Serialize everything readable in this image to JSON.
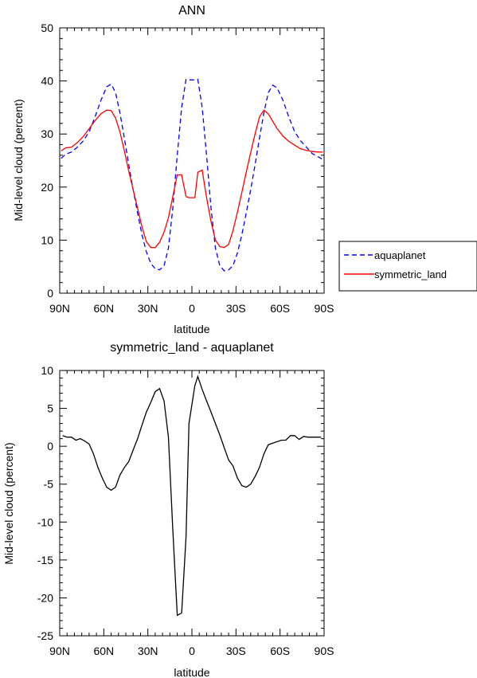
{
  "chart_data": [
    {
      "type": "line",
      "title": "ANN",
      "xlabel": "latitude",
      "ylabel": "Mid-level cloud (percent)",
      "xlim": [
        -90,
        90
      ],
      "ylim": [
        0,
        50
      ],
      "x_ticks": [
        -90,
        -60,
        -30,
        0,
        30,
        60,
        90
      ],
      "x_tick_labels": [
        "90N",
        "60N",
        "30N",
        "0",
        "30S",
        "60S",
        "90S"
      ],
      "y_ticks": [
        0,
        10,
        20,
        30,
        40,
        50
      ],
      "y_tick_labels": [
        "0",
        "10",
        "20",
        "30",
        "40",
        "50"
      ],
      "legend": "outside-right",
      "series": [
        {
          "name": "aquaplanet",
          "color": "#0000ff",
          "dash": "dashed",
          "x": [
            -89,
            -86,
            -82,
            -78,
            -74,
            -70,
            -66,
            -62,
            -58,
            -55,
            -52,
            -49,
            -46,
            -43,
            -40,
            -37,
            -34,
            -31,
            -28,
            -25,
            -22,
            -19,
            -16,
            -13,
            -10,
            -7,
            -4,
            -1,
            1,
            4,
            7,
            10,
            13,
            16,
            19,
            22,
            25,
            28,
            31,
            34,
            37,
            40,
            43,
            46,
            49,
            52,
            55,
            58,
            62,
            66,
            70,
            74,
            78,
            82,
            86,
            89
          ],
          "y": [
            25.4,
            26.2,
            26.6,
            27.5,
            28.7,
            30.4,
            33.2,
            36.3,
            38.9,
            39.4,
            37.8,
            34.0,
            29.2,
            24.2,
            19.5,
            15.1,
            11.0,
            7.8,
            5.6,
            4.6,
            4.4,
            5.2,
            8.5,
            16.0,
            26.0,
            35.0,
            40.3,
            40.2,
            40.2,
            40.3,
            35.0,
            26.0,
            16.0,
            8.5,
            5.2,
            4.2,
            4.4,
            5.2,
            7.6,
            11.0,
            15.1,
            19.5,
            24.2,
            29.2,
            34.0,
            37.8,
            39.2,
            38.7,
            36.3,
            33.2,
            30.4,
            28.7,
            27.5,
            26.3,
            25.7,
            25.2
          ]
        },
        {
          "name": "symmetric_land",
          "color": "#ff0000",
          "dash": "solid",
          "x": [
            -89,
            -86,
            -82,
            -78,
            -74,
            -70,
            -66,
            -62,
            -58,
            -55,
            -52,
            -49,
            -46,
            -43,
            -40,
            -37,
            -34,
            -31,
            -28,
            -25,
            -22,
            -19,
            -16,
            -13,
            -10,
            -7,
            -4,
            -2,
            2,
            4,
            7,
            10,
            13,
            16,
            19,
            22,
            25,
            28,
            31,
            34,
            37,
            40,
            43,
            46,
            49,
            52,
            55,
            58,
            62,
            66,
            70,
            74,
            78,
            82,
            86,
            89
          ],
          "y": [
            26.8,
            27.4,
            27.5,
            28.4,
            29.5,
            31.0,
            32.5,
            33.8,
            34.5,
            34.4,
            33.0,
            30.4,
            26.8,
            23.0,
            19.5,
            16.0,
            12.5,
            9.7,
            8.6,
            8.6,
            9.6,
            11.5,
            14.2,
            18.2,
            22.3,
            22.3,
            18.2,
            18.0,
            18.0,
            22.8,
            23.2,
            18.0,
            13.5,
            10.0,
            8.8,
            8.6,
            9.2,
            11.8,
            15.3,
            19.0,
            22.8,
            26.5,
            30.0,
            33.2,
            34.5,
            33.8,
            32.4,
            31.0,
            29.6,
            28.6,
            27.9,
            27.2,
            26.9,
            26.7,
            26.6,
            26.6
          ]
        }
      ]
    },
    {
      "type": "line",
      "title": "symmetric_land - aquaplanet",
      "xlabel": "latitude",
      "ylabel": "Mid-level cloud (percent)",
      "xlim": [
        -90,
        90
      ],
      "ylim": [
        -25,
        10
      ],
      "x_ticks": [
        -90,
        -60,
        -30,
        0,
        30,
        60,
        90
      ],
      "x_tick_labels": [
        "90N",
        "60N",
        "30N",
        "0",
        "30S",
        "60S",
        "90S"
      ],
      "y_ticks": [
        -25,
        -20,
        -15,
        -10,
        -5,
        0,
        5,
        10
      ],
      "y_tick_labels": [
        "-25",
        "-20",
        "-15",
        "-10",
        "-5",
        "0",
        "5",
        "10"
      ],
      "series": [
        {
          "color": "#000000",
          "dash": "solid",
          "x": [
            -88,
            -85,
            -82,
            -79,
            -76,
            -73,
            -70,
            -67,
            -64,
            -61,
            -58,
            -55,
            -52,
            -49,
            -46,
            -43,
            -40,
            -37,
            -34,
            -31,
            -28,
            -25,
            -22,
            -19,
            -16,
            -13,
            -10,
            -7,
            -4,
            -2,
            2,
            4,
            7,
            10,
            13,
            16,
            19,
            22,
            25,
            28,
            31,
            34,
            37,
            40,
            43,
            46,
            49,
            52,
            55,
            58,
            61,
            64,
            67,
            70,
            73,
            76,
            79,
            82,
            85,
            88
          ],
          "y": [
            1.4,
            1.2,
            1.2,
            0.8,
            1.0,
            0.7,
            0.3,
            -1.0,
            -2.8,
            -4.2,
            -5.4,
            -5.8,
            -5.4,
            -3.8,
            -2.8,
            -2.0,
            -0.5,
            1.0,
            2.8,
            4.5,
            5.8,
            7.2,
            7.6,
            6.0,
            1.2,
            -11.0,
            -22.3,
            -22.0,
            -12.0,
            3.0,
            8.0,
            9.2,
            7.5,
            6.0,
            4.5,
            3.0,
            1.5,
            -0.2,
            -1.8,
            -2.6,
            -4.2,
            -5.2,
            -5.4,
            -5.0,
            -4.0,
            -2.8,
            -1.0,
            0.2,
            0.4,
            0.6,
            0.8,
            0.8,
            1.4,
            1.4,
            0.9,
            1.3,
            1.2,
            1.2,
            1.2,
            1.2
          ]
        }
      ]
    }
  ]
}
